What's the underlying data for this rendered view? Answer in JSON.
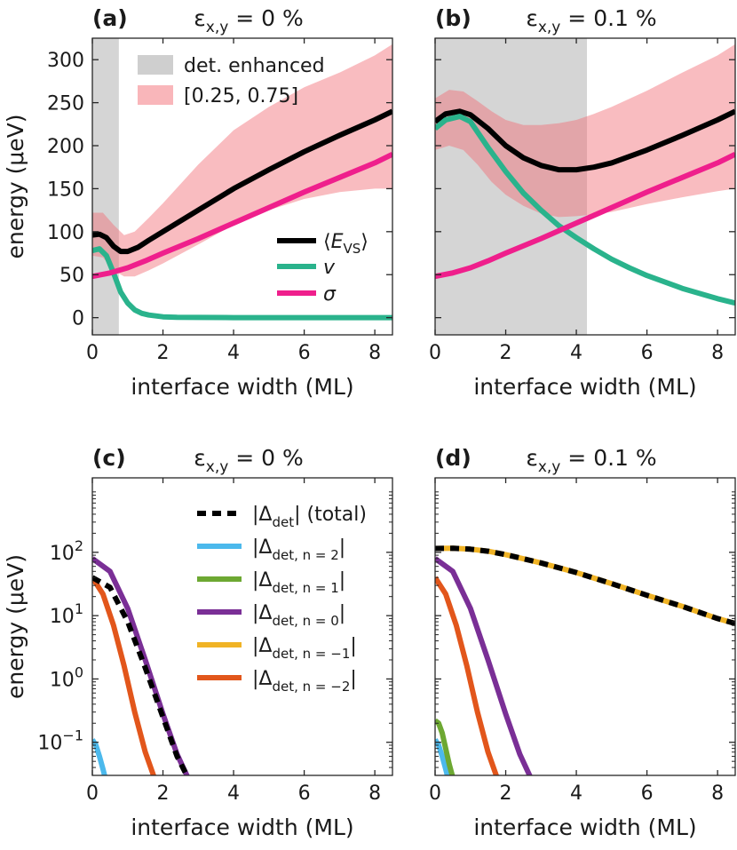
{
  "chart_data": [
    {
      "panel_label": "(a)",
      "title_symbol": "ε",
      "title_sub": "x,y",
      "title_rest": " = 0 %",
      "type": "line",
      "xlabel": "interface width (ML)",
      "ylabel": "energy (μeV)",
      "xlim": [
        0,
        8.5
      ],
      "ylim": [
        -20,
        325
      ],
      "xticks": [
        "0",
        "2",
        "4",
        "6",
        "8"
      ],
      "yticks": [
        "0",
        "50",
        "100",
        "150",
        "200",
        "250",
        "300"
      ],
      "shaded_region": {
        "name": "det. enhanced",
        "x": [
          0,
          0.75
        ]
      },
      "band": {
        "name": "[0.25, 0.75]",
        "x": [
          0,
          0.3,
          0.6,
          0.9,
          1.2,
          1.6,
          2,
          3,
          4,
          5,
          6,
          7,
          8,
          8.5
        ],
        "lower": [
          72,
          70,
          55,
          48,
          48,
          55,
          63,
          85,
          108,
          125,
          138,
          146,
          150,
          150
        ],
        "upper": [
          122,
          122,
          108,
          96,
          100,
          116,
          133,
          178,
          218,
          245,
          268,
          285,
          305,
          318
        ]
      },
      "series": [
        {
          "name": "⟨E_VS⟩",
          "color": "#000000",
          "x": [
            0,
            0.2,
            0.4,
            0.6,
            0.8,
            1.0,
            1.3,
            1.6,
            2,
            3,
            4,
            5,
            6,
            7,
            8,
            8.5
          ],
          "y": [
            96,
            97,
            93,
            83,
            77,
            77,
            82,
            90,
            100,
            125,
            150,
            172,
            193,
            212,
            230,
            240
          ]
        },
        {
          "name": "v",
          "color": "#2ab38c",
          "x": [
            0,
            0.2,
            0.4,
            0.6,
            0.8,
            1.0,
            1.2,
            1.4,
            1.6,
            1.8,
            2,
            2.4,
            3,
            4,
            5,
            6,
            7,
            8,
            8.5
          ],
          "y": [
            78,
            80,
            72,
            52,
            30,
            17,
            9,
            5,
            3,
            2,
            1,
            0.5,
            0.2,
            0,
            0,
            0,
            0,
            0,
            0
          ]
        },
        {
          "name": "σ",
          "color": "#ef1f8c",
          "x": [
            0,
            0.5,
            1,
            1.5,
            2,
            3,
            4,
            5,
            6,
            7,
            8,
            8.5
          ],
          "y": [
            48,
            52,
            58,
            66,
            75,
            92,
            110,
            128,
            146,
            163,
            180,
            190
          ]
        }
      ]
    },
    {
      "panel_label": "(b)",
      "title_symbol": "ε",
      "title_sub": "x,y",
      "title_rest": " = 0.1 %",
      "type": "line",
      "xlabel": "interface width (ML)",
      "ylabel": "",
      "xlim": [
        0,
        8.5
      ],
      "ylim": [
        -20,
        325
      ],
      "xticks": [
        "0",
        "2",
        "4",
        "6",
        "8"
      ],
      "shaded_region": {
        "x": [
          0,
          4.3
        ]
      },
      "band": {
        "x": [
          0,
          0.4,
          0.8,
          1.2,
          1.6,
          2,
          2.5,
          3,
          3.5,
          4,
          4.5,
          5,
          6,
          7,
          8,
          8.5
        ],
        "lower": [
          195,
          200,
          195,
          178,
          158,
          143,
          130,
          121,
          117,
          118,
          120,
          123,
          132,
          140,
          147,
          150
        ],
        "upper": [
          255,
          265,
          263,
          252,
          240,
          230,
          224,
          224,
          226,
          230,
          237,
          245,
          264,
          285,
          305,
          318
        ]
      },
      "series": [
        {
          "name": "⟨E_VS⟩",
          "color": "#000000",
          "x": [
            0,
            0.3,
            0.7,
            1.0,
            1.5,
            2,
            2.5,
            3,
            3.5,
            4,
            4.5,
            5,
            6,
            7,
            8,
            8.5
          ],
          "y": [
            228,
            237,
            240,
            236,
            220,
            200,
            186,
            177,
            172,
            172,
            175,
            180,
            195,
            212,
            230,
            240
          ]
        },
        {
          "name": "v",
          "color": "#2ab38c",
          "x": [
            0,
            0.3,
            0.7,
            1.0,
            1.5,
            2,
            2.5,
            3,
            3.5,
            4,
            4.5,
            5,
            5.5,
            6,
            7,
            8,
            8.5
          ],
          "y": [
            220,
            230,
            234,
            228,
            198,
            170,
            145,
            125,
            107,
            93,
            80,
            68,
            58,
            49,
            34,
            22,
            17
          ]
        },
        {
          "name": "σ",
          "color": "#ef1f8c",
          "x": [
            0,
            0.5,
            1,
            1.5,
            2,
            3,
            4,
            5,
            6,
            7,
            8,
            8.5
          ],
          "y": [
            48,
            52,
            58,
            66,
            75,
            92,
            110,
            128,
            146,
            163,
            180,
            190
          ]
        }
      ]
    },
    {
      "panel_label": "(c)",
      "title_symbol": "ε",
      "title_sub": "x,y",
      "title_rest": " = 0 %",
      "type": "line",
      "yscale": "log",
      "xlabel": "interface width (ML)",
      "ylabel": "energy (μeV)",
      "xlim": [
        0,
        8.5
      ],
      "ylim": [
        0.03,
        1500
      ],
      "xticks": [
        "0",
        "2",
        "4",
        "6",
        "8"
      ],
      "ytick_values": [
        0.1,
        1,
        10,
        100
      ],
      "ytick_exponents": [
        "−1",
        "0",
        "1",
        "2"
      ],
      "ytick_base": "10",
      "series": [
        {
          "name_main": "|Δ",
          "name_sub": "det",
          "name_end": "| (total)",
          "color": "#000000",
          "dashed": true,
          "x": [
            0,
            0.5,
            1.0,
            1.5,
            2.0,
            2.4,
            2.7
          ],
          "y": [
            40,
            28,
            8,
            1.5,
            0.25,
            0.06,
            0.028
          ]
        },
        {
          "name_main": "|Δ",
          "name_sub": "det, n = 2",
          "name_end": "|",
          "color": "#4cb9ec",
          "x": [
            0,
            0.1,
            0.2,
            0.3,
            0.36
          ],
          "y": [
            0.11,
            0.09,
            0.06,
            0.038,
            0.028
          ]
        },
        {
          "name_main": "|Δ",
          "name_sub": "det, n = 1",
          "name_end": "|",
          "color": "#6da832",
          "x": [],
          "y": []
        },
        {
          "name_main": "|Δ",
          "name_sub": "det, n = 0",
          "name_end": "|",
          "color": "#7a2f96",
          "x": [
            0,
            0.5,
            1.0,
            1.5,
            2.0,
            2.4,
            2.7
          ],
          "y": [
            80,
            50,
            13,
            2,
            0.28,
            0.065,
            0.028
          ]
        },
        {
          "name_main": "|Δ",
          "name_sub": "det, n = −1",
          "name_end": "|",
          "color": "#f0b325",
          "x": [],
          "y": []
        },
        {
          "name_main": "|Δ",
          "name_sub": "det, n = −2",
          "name_end": "|",
          "color": "#e2561b",
          "x": [
            0,
            0.3,
            0.6,
            0.9,
            1.2,
            1.5,
            1.75
          ],
          "y": [
            40,
            22,
            7,
            1.6,
            0.3,
            0.07,
            0.028
          ]
        }
      ]
    },
    {
      "panel_label": "(d)",
      "title_symbol": "ε",
      "title_sub": "x,y",
      "title_rest": " = 0.1 %",
      "type": "line",
      "yscale": "log",
      "xlabel": "interface width (ML)",
      "ylabel": "",
      "xlim": [
        0,
        8.5
      ],
      "ylim": [
        0.03,
        1500
      ],
      "xticks": [
        "0",
        "2",
        "4",
        "6",
        "8"
      ],
      "series": [
        {
          "name": "total",
          "color": "#000000",
          "dashed": true,
          "x": [
            0,
            0.5,
            1,
            1.5,
            2,
            3,
            4,
            5,
            6,
            7,
            8,
            8.5
          ],
          "y": [
            115,
            116,
            112,
            104,
            92,
            68,
            48,
            32,
            21,
            14,
            9,
            7.5
          ]
        },
        {
          "name": "n = 2",
          "color": "#4cb9ec",
          "x": [
            0,
            0.1,
            0.2,
            0.3,
            0.36
          ],
          "y": [
            0.11,
            0.09,
            0.06,
            0.038,
            0.028
          ]
        },
        {
          "name": "n = 1",
          "color": "#6da832",
          "x": [
            0,
            0.1,
            0.2,
            0.3,
            0.4,
            0.5
          ],
          "y": [
            0.22,
            0.2,
            0.14,
            0.08,
            0.045,
            0.028
          ]
        },
        {
          "name": "n = 0",
          "color": "#7a2f96",
          "x": [
            0,
            0.5,
            1.0,
            1.5,
            2.0,
            2.4,
            2.7
          ],
          "y": [
            80,
            50,
            13,
            2,
            0.28,
            0.065,
            0.028
          ]
        },
        {
          "name": "n = −1",
          "color": "#f0b325",
          "x": [
            0,
            0.5,
            1,
            1.5,
            2,
            3,
            4,
            5,
            6,
            7,
            8,
            8.5
          ],
          "y": [
            115,
            116,
            112,
            104,
            92,
            68,
            48,
            32,
            21,
            14,
            9,
            7.5
          ]
        },
        {
          "name": "n = −2",
          "color": "#e2561b",
          "x": [
            0,
            0.3,
            0.6,
            0.9,
            1.2,
            1.5,
            1.75
          ],
          "y": [
            40,
            22,
            7,
            1.6,
            0.3,
            0.07,
            0.028
          ]
        }
      ]
    }
  ]
}
